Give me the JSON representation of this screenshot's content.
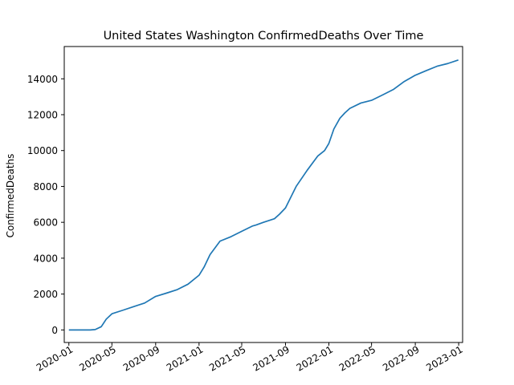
{
  "chart_data": {
    "type": "line",
    "title": "United States Washington ConfirmedDeaths Over Time",
    "xlabel": "",
    "ylabel": "ConfirmedDeaths",
    "grid": false,
    "xlim": [
      "2019-12-19",
      "2023-01-12"
    ],
    "ylim": [
      -700,
      15800
    ],
    "x_ticks": [
      "2020-01",
      "2020-05",
      "2020-09",
      "2021-01",
      "2021-05",
      "2021-09",
      "2022-01",
      "2022-05",
      "2022-09",
      "2023-01"
    ],
    "y_ticks": [
      0,
      2000,
      4000,
      6000,
      8000,
      10000,
      12000,
      14000
    ],
    "y_tick_labels": [
      "0",
      "2000",
      "4000",
      "6000",
      "8000",
      "10000",
      "12000",
      "14000"
    ],
    "color": "#1f77b4",
    "series": [
      {
        "x": [
          "2020-01-01",
          "2020-02-01",
          "2020-03-01",
          "2020-03-15",
          "2020-04-01",
          "2020-04-15",
          "2020-05-01",
          "2020-06-01",
          "2020-07-01",
          "2020-08-01",
          "2020-09-01",
          "2020-10-01",
          "2020-11-01",
          "2020-12-01",
          "2021-01-01",
          "2021-01-15",
          "2021-02-01",
          "2021-03-01",
          "2021-04-01",
          "2021-05-01",
          "2021-06-01",
          "2021-06-10",
          "2021-07-01",
          "2021-08-01",
          "2021-08-15",
          "2021-09-01",
          "2021-10-01",
          "2021-11-01",
          "2021-12-01",
          "2021-12-20",
          "2022-01-01",
          "2022-01-15",
          "2022-02-01",
          "2022-02-15",
          "2022-03-01",
          "2022-04-01",
          "2022-05-01",
          "2022-06-01",
          "2022-07-01",
          "2022-08-01",
          "2022-09-01",
          "2022-10-01",
          "2022-11-01",
          "2022-12-01",
          "2022-12-31"
        ],
        "values": [
          0,
          0,
          0,
          20,
          180,
          600,
          900,
          1100,
          1300,
          1500,
          1870,
          2050,
          2250,
          2550,
          3050,
          3500,
          4200,
          4950,
          5200,
          5500,
          5800,
          5850,
          6000,
          6200,
          6450,
          6800,
          8000,
          8900,
          9700,
          10000,
          10400,
          11200,
          11800,
          12100,
          12350,
          12650,
          12800,
          13100,
          13400,
          13850,
          14200,
          14450,
          14700,
          14850,
          15050
        ]
      }
    ]
  }
}
